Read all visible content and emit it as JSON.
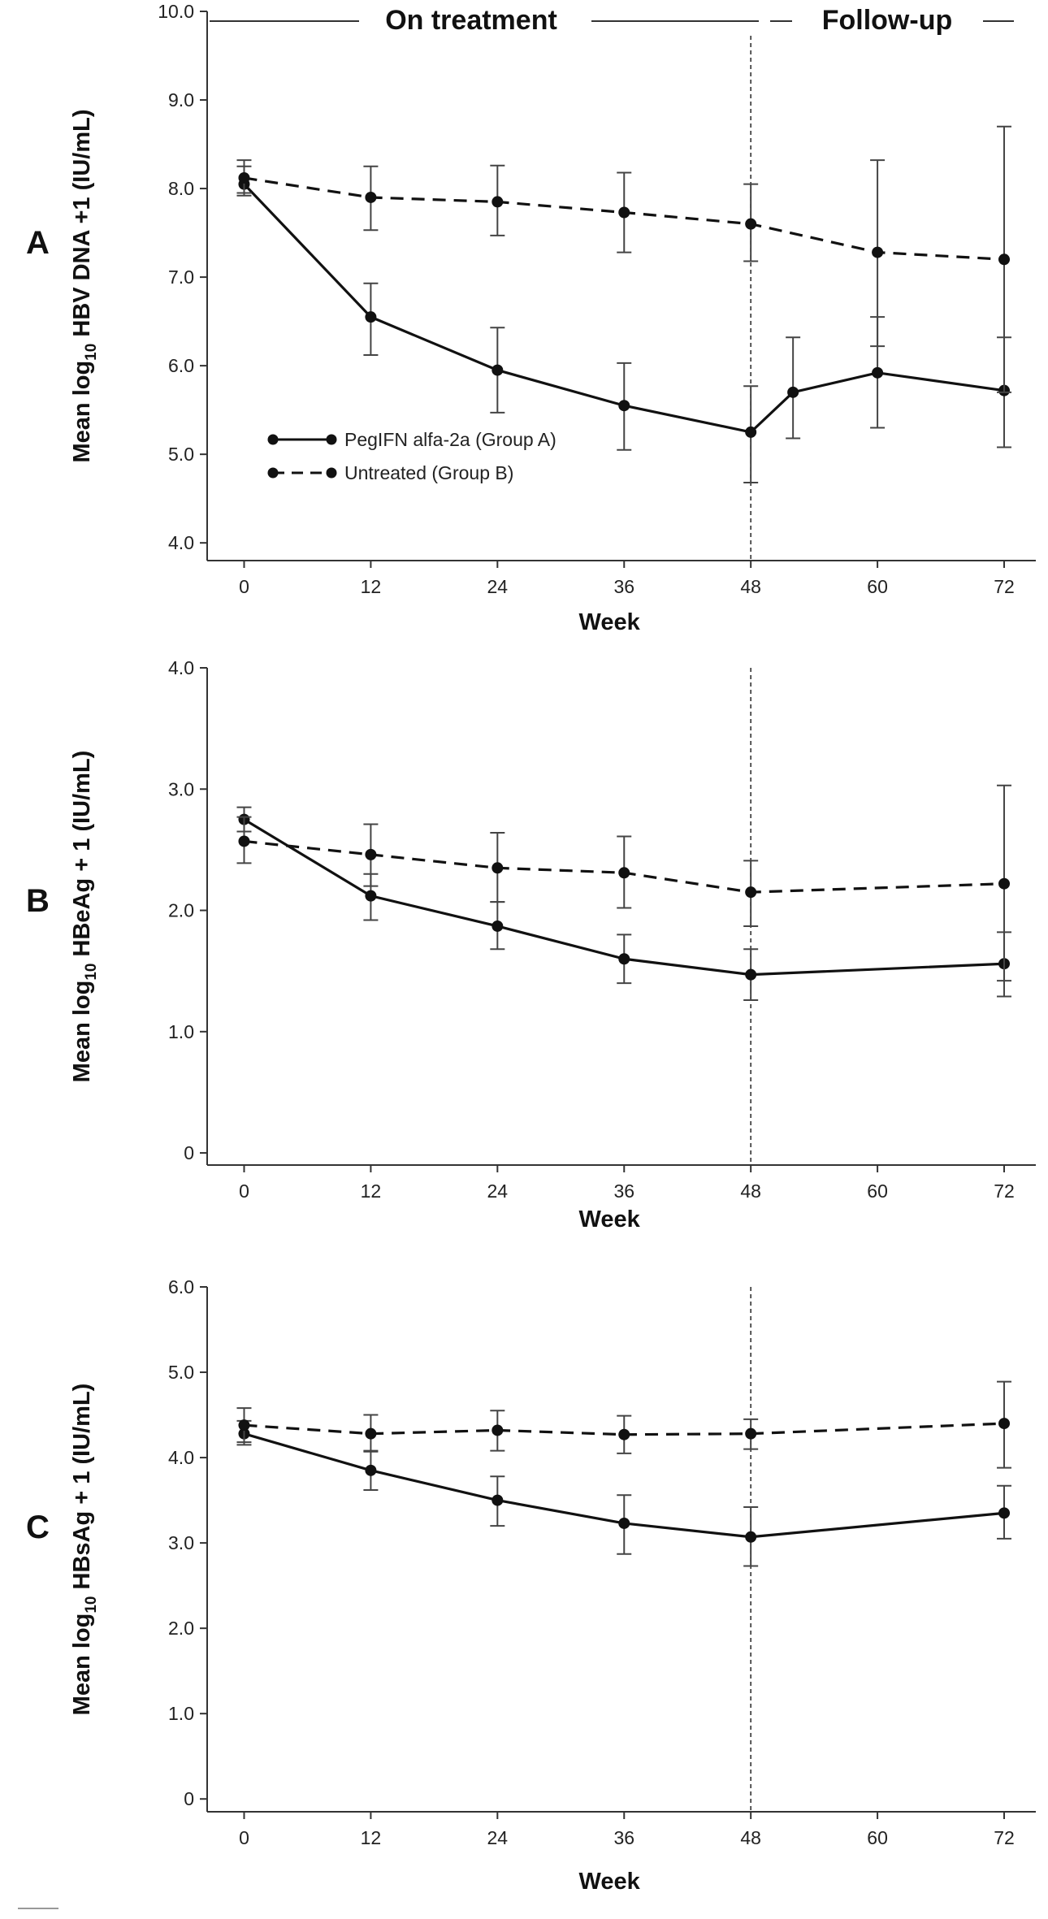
{
  "figure": {
    "phase_labels": {
      "on_treatment": "On treatment",
      "follow_up": "Follow-up"
    }
  },
  "legend": {
    "series_a": "PegIFN alfa-2a (Group A)",
    "series_b": "Untreated (Group B)"
  },
  "chart_data": [
    {
      "panel": "A",
      "type": "line",
      "xlabel": "Week",
      "ylabel_parts": [
        "Mean log",
        "10",
        " HBV DNA +1 (IU/mL)"
      ],
      "xticks": [
        0,
        12,
        24,
        36,
        48,
        60,
        72
      ],
      "xtick_labels": [
        "0",
        "12",
        "24",
        "36",
        "48",
        "60",
        "72"
      ],
      "yticks": [
        4.0,
        5.0,
        6.0,
        7.0,
        8.0,
        9.0,
        10.0
      ],
      "ytick_labels": [
        "4.0",
        "5.0",
        "6.0",
        "7.0",
        "8.0",
        "9.0",
        "10.0"
      ],
      "xlim": [
        -3.5,
        75
      ],
      "ylim": [
        3.8,
        10.0
      ],
      "vline": 48,
      "legend_position": "bottom-left",
      "series": [
        {
          "name": "PegIFN alfa-2a (Group A)",
          "style": "solid",
          "x": [
            0,
            12,
            24,
            36,
            48,
            52,
            60,
            72
          ],
          "y": [
            8.05,
            6.55,
            5.95,
            5.55,
            5.25,
            5.7,
            5.92,
            5.72
          ],
          "lo": [
            7.95,
            6.12,
            5.47,
            5.05,
            4.68,
            5.18,
            5.3,
            5.08
          ],
          "hi": [
            8.25,
            6.93,
            6.43,
            6.03,
            5.77,
            6.32,
            6.55,
            6.32
          ]
        },
        {
          "name": "Untreated (Group B)",
          "style": "dashed",
          "x": [
            0,
            12,
            24,
            36,
            48,
            60,
            72
          ],
          "y": [
            8.12,
            7.9,
            7.85,
            7.73,
            7.6,
            7.28,
            7.2
          ],
          "lo": [
            7.92,
            7.53,
            7.47,
            7.28,
            7.18,
            6.22,
            5.7
          ],
          "hi": [
            8.32,
            8.25,
            8.26,
            8.18,
            8.05,
            8.32,
            8.7
          ]
        }
      ]
    },
    {
      "panel": "B",
      "type": "line",
      "xlabel": "Week",
      "ylabel_parts": [
        "Mean log",
        "10",
        " HBeAg + 1 (IU/mL)"
      ],
      "xticks": [
        0,
        12,
        24,
        36,
        48,
        60,
        72
      ],
      "xtick_labels": [
        "0",
        "12",
        "24",
        "36",
        "48",
        "60",
        "72"
      ],
      "yticks": [
        0,
        1.0,
        2.0,
        3.0,
        4.0
      ],
      "ytick_labels": [
        "0",
        "1.0",
        "2.0",
        "3.0",
        "4.0"
      ],
      "xlim": [
        -3.5,
        75
      ],
      "ylim": [
        -0.1,
        4.0
      ],
      "vline": 48,
      "series": [
        {
          "name": "PegIFN alfa-2a (Group A)",
          "style": "solid",
          "x": [
            0,
            12,
            24,
            36,
            48,
            72
          ],
          "y": [
            2.75,
            2.12,
            1.87,
            1.6,
            1.47,
            1.56
          ],
          "lo": [
            2.65,
            1.92,
            1.68,
            1.4,
            1.26,
            1.29
          ],
          "hi": [
            2.85,
            2.3,
            2.07,
            1.8,
            1.68,
            1.82
          ]
        },
        {
          "name": "Untreated (Group B)",
          "style": "dashed",
          "x": [
            0,
            12,
            24,
            36,
            48,
            72
          ],
          "y": [
            2.57,
            2.46,
            2.35,
            2.31,
            2.15,
            2.22
          ],
          "lo": [
            2.39,
            2.2,
            2.07,
            2.02,
            1.87,
            1.42
          ],
          "hi": [
            2.77,
            2.71,
            2.64,
            2.61,
            2.41,
            3.03
          ]
        }
      ]
    },
    {
      "panel": "C",
      "type": "line",
      "xlabel": "Week",
      "ylabel_parts": [
        "Mean log",
        "10",
        " HBsAg + 1 (IU/mL)"
      ],
      "xticks": [
        0,
        12,
        24,
        36,
        48,
        60,
        72
      ],
      "xtick_labels": [
        "0",
        "12",
        "24",
        "36",
        "48",
        "60",
        "72"
      ],
      "yticks": [
        0,
        1.0,
        2.0,
        3.0,
        4.0,
        5.0,
        6.0
      ],
      "ytick_labels": [
        "0",
        "1.0",
        "2.0",
        "3.0",
        "4.0",
        "5.0",
        "6.0"
      ],
      "xlim": [
        -3.5,
        75
      ],
      "ylim": [
        -0.15,
        6.0
      ],
      "vline": 48,
      "series": [
        {
          "name": "PegIFN alfa-2a (Group A)",
          "style": "solid",
          "x": [
            0,
            12,
            24,
            36,
            48,
            72
          ],
          "y": [
            4.28,
            3.85,
            3.5,
            3.23,
            3.07,
            3.35
          ],
          "lo": [
            4.15,
            3.62,
            3.2,
            2.87,
            2.73,
            3.05
          ],
          "hi": [
            4.43,
            4.08,
            3.78,
            3.56,
            3.42,
            3.67
          ]
        },
        {
          "name": "Untreated (Group B)",
          "style": "dashed",
          "x": [
            0,
            12,
            24,
            36,
            48,
            72
          ],
          "y": [
            4.38,
            4.28,
            4.32,
            4.27,
            4.28,
            4.4
          ],
          "lo": [
            4.18,
            4.07,
            4.08,
            4.05,
            4.1,
            3.88
          ],
          "hi": [
            4.58,
            4.5,
            4.55,
            4.49,
            4.45,
            4.89
          ]
        }
      ]
    }
  ]
}
